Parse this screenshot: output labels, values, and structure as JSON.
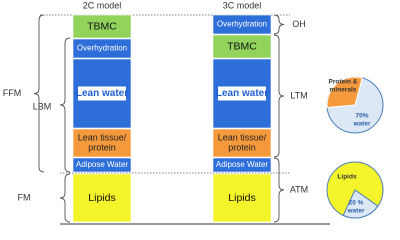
{
  "header": {
    "left_model": "2C model",
    "right_model": "3C model"
  },
  "left_column": {
    "blocks": [
      {
        "lines": [
          "TBMC"
        ]
      },
      {
        "lines": [
          "Overhydration"
        ]
      },
      {
        "lines": [
          "Lean water"
        ]
      },
      {
        "lines": [
          "Lean tissue/",
          "protein"
        ]
      },
      {
        "lines": [
          "Adipose Water"
        ]
      },
      {
        "lines": [
          "Lipids"
        ]
      }
    ]
  },
  "right_column": {
    "blocks": [
      {
        "lines": [
          "Overhydration"
        ]
      },
      {
        "lines": [
          "TBMC"
        ]
      },
      {
        "lines": [
          "Lean water"
        ]
      },
      {
        "lines": [
          "Lean tissue/",
          "protein"
        ]
      },
      {
        "lines": [
          "Adipose Water"
        ]
      },
      {
        "lines": [
          "Lipids"
        ]
      }
    ]
  },
  "left_brackets": [
    "FFM",
    "LBM",
    "FM"
  ],
  "right_brackets": [
    "OH",
    "LTM",
    "ATM"
  ],
  "pies": [
    {
      "slice_lines": [
        "Protein &",
        "minerals"
      ],
      "main_lines": [
        "70%",
        "water"
      ]
    },
    {
      "slice_lines": [
        "20 %",
        "water"
      ],
      "main_lines": [
        "Lipids"
      ]
    }
  ]
}
